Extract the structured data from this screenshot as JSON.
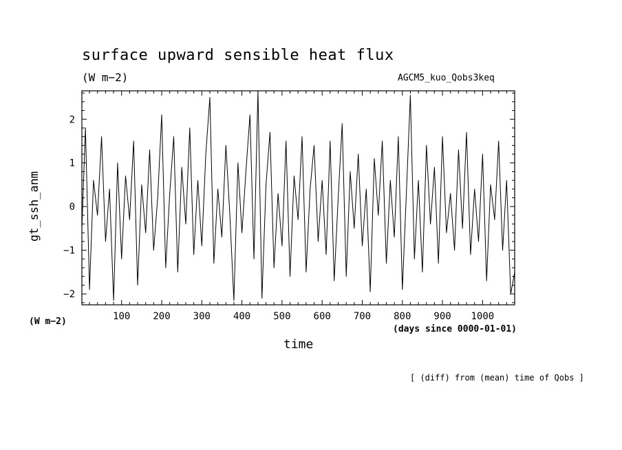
{
  "chart_data": {
    "type": "line",
    "title": "surface upward sensible heat flux",
    "subtitle": "(W m−2)",
    "run_label": "AGCM5_kuo_Qobs3keq",
    "xlabel": "time",
    "x_unit_label": "(days since 0000-01-01)",
    "ylabel": "gt_ssh_anm",
    "y_unit_label": "(W m−2)",
    "note": "[ (diff) from (mean) time of Qobs ]",
    "xlim": [
      1,
      1080
    ],
    "ylim": [
      -2.25,
      2.65
    ],
    "x_ticks": [
      100,
      200,
      300,
      400,
      500,
      600,
      700,
      800,
      900,
      1000
    ],
    "x_tick_labels": [
      "100",
      "200",
      "300",
      "400",
      "500",
      "600",
      "700",
      "800",
      "900",
      "1000"
    ],
    "y_ticks": [
      -2,
      -1,
      0,
      1,
      2
    ],
    "y_tick_labels": [
      "−2",
      "−1",
      "0",
      "1",
      "2"
    ],
    "series": [
      {
        "color": "#000000",
        "x": [
          1,
          10,
          20,
          30,
          40,
          50,
          60,
          70,
          80,
          90,
          100,
          110,
          120,
          130,
          140,
          150,
          160,
          170,
          180,
          190,
          200,
          210,
          220,
          230,
          240,
          250,
          260,
          270,
          280,
          290,
          300,
          310,
          320,
          330,
          340,
          350,
          360,
          370,
          380,
          390,
          400,
          410,
          420,
          430,
          440,
          450,
          460,
          470,
          480,
          490,
          500,
          510,
          520,
          530,
          540,
          550,
          560,
          570,
          580,
          590,
          600,
          610,
          620,
          630,
          640,
          650,
          660,
          670,
          680,
          690,
          700,
          710,
          720,
          730,
          740,
          750,
          760,
          770,
          780,
          790,
          800,
          810,
          820,
          830,
          840,
          850,
          860,
          870,
          880,
          890,
          900,
          910,
          920,
          930,
          940,
          950,
          960,
          970,
          980,
          990,
          1000,
          1010,
          1020,
          1030,
          1040,
          1050,
          1060,
          1070,
          1080
        ],
        "values": [
          -0.5,
          1.8,
          -1.9,
          0.6,
          -0.2,
          1.6,
          -0.8,
          0.4,
          -2.15,
          1.0,
          -1.2,
          0.7,
          -0.3,
          1.5,
          -1.8,
          0.5,
          -0.6,
          1.3,
          -1.0,
          0.2,
          2.1,
          -1.4,
          0.3,
          1.6,
          -1.5,
          0.9,
          -0.4,
          1.8,
          -1.1,
          0.6,
          -0.9,
          1.2,
          2.5,
          -1.3,
          0.4,
          -0.7,
          1.4,
          -0.2,
          -2.15,
          1.0,
          -0.6,
          0.8,
          2.1,
          -1.2,
          2.65,
          -2.1,
          0.5,
          1.7,
          -1.4,
          0.3,
          -0.9,
          1.5,
          -1.6,
          0.7,
          -0.3,
          1.6,
          -1.5,
          0.4,
          1.4,
          -0.8,
          0.6,
          -1.1,
          1.5,
          -1.7,
          0.2,
          1.9,
          -1.6,
          0.8,
          -0.5,
          1.2,
          -0.9,
          0.4,
          -1.95,
          1.1,
          -0.2,
          1.5,
          -1.3,
          0.6,
          -0.7,
          1.6,
          -1.9,
          0.3,
          2.55,
          -1.2,
          0.6,
          -1.5,
          1.4,
          -0.4,
          0.9,
          -1.3,
          1.6,
          -0.6,
          0.3,
          -1.0,
          1.3,
          -0.5,
          1.7,
          -1.1,
          0.4,
          -0.8,
          1.2,
          -1.7,
          0.5,
          -0.3,
          1.5,
          -1.0,
          0.6,
          -2.0,
          -1.5
        ]
      }
    ]
  }
}
